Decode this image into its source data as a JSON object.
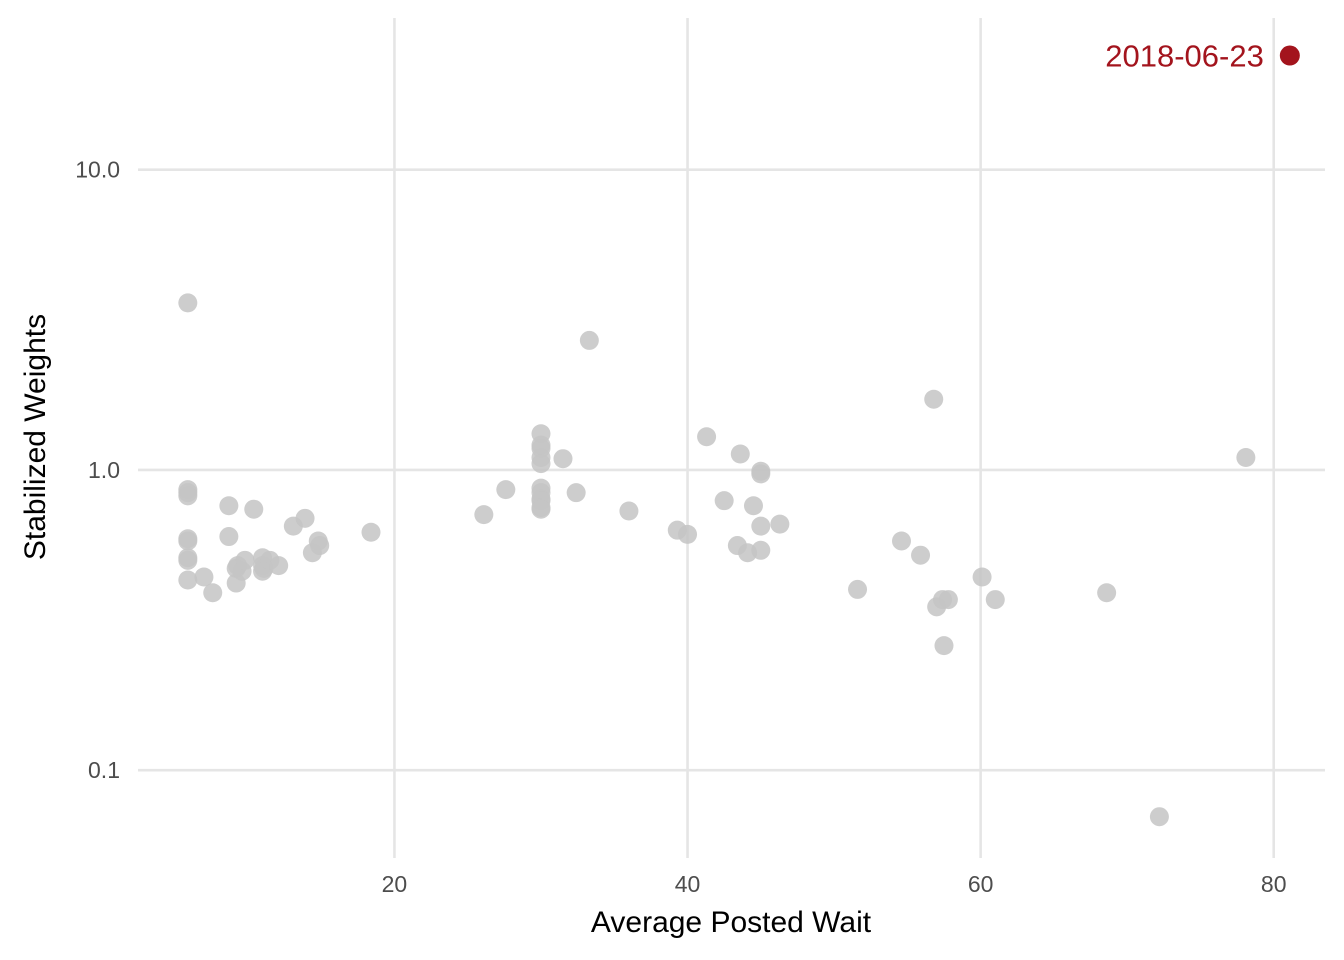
{
  "chart_data": {
    "type": "scatter",
    "title": "",
    "xlabel": "Average Posted Wait",
    "ylabel": "Stabilized Weights",
    "x_ticks": [
      "20",
      "40",
      "60",
      "80"
    ],
    "y_ticks": [
      "0.1",
      "1.0",
      "10.0"
    ],
    "y_scale": "log10",
    "xlim": [
      2.5,
      83.5
    ],
    "ylim": [
      0.051,
      32
    ],
    "grid": true,
    "colors": {
      "points": "#c4c4c4",
      "highlight": "#a3141d",
      "grid": "#e5e5e5"
    },
    "points": [
      [
        5.9,
        3.6
      ],
      [
        5.9,
        0.86
      ],
      [
        5.9,
        0.84
      ],
      [
        5.9,
        0.82
      ],
      [
        5.9,
        0.59
      ],
      [
        5.9,
        0.58
      ],
      [
        5.9,
        0.51
      ],
      [
        5.9,
        0.5
      ],
      [
        5.9,
        0.43
      ],
      [
        7.0,
        0.44
      ],
      [
        7.6,
        0.39
      ],
      [
        8.7,
        0.76
      ],
      [
        8.7,
        0.6
      ],
      [
        9.2,
        0.47
      ],
      [
        9.2,
        0.42
      ],
      [
        9.3,
        0.48
      ],
      [
        9.6,
        0.46
      ],
      [
        9.8,
        0.5
      ],
      [
        10.4,
        0.74
      ],
      [
        11.0,
        0.51
      ],
      [
        11.0,
        0.48
      ],
      [
        11.0,
        0.46
      ],
      [
        11.1,
        0.47
      ],
      [
        11.5,
        0.5
      ],
      [
        12.1,
        0.48
      ],
      [
        13.1,
        0.65
      ],
      [
        13.9,
        0.69
      ],
      [
        14.4,
        0.53
      ],
      [
        14.8,
        0.58
      ],
      [
        14.9,
        0.56
      ],
      [
        18.4,
        0.62
      ],
      [
        26.1,
        0.71
      ],
      [
        27.6,
        0.86
      ],
      [
        30.0,
        1.32
      ],
      [
        30.0,
        1.21
      ],
      [
        30.0,
        1.18
      ],
      [
        30.0,
        1.1
      ],
      [
        30.0,
        1.05
      ],
      [
        30.0,
        0.87
      ],
      [
        30.0,
        0.84
      ],
      [
        30.0,
        0.8
      ],
      [
        30.0,
        0.79
      ],
      [
        30.0,
        0.75
      ],
      [
        30.0,
        0.74
      ],
      [
        31.5,
        1.09
      ],
      [
        32.4,
        0.84
      ],
      [
        33.3,
        2.7
      ],
      [
        36.0,
        0.73
      ],
      [
        39.3,
        0.63
      ],
      [
        40.0,
        0.61
      ],
      [
        41.3,
        1.29
      ],
      [
        42.5,
        0.79
      ],
      [
        43.4,
        0.56
      ],
      [
        43.6,
        1.13
      ],
      [
        44.1,
        0.53
      ],
      [
        44.5,
        0.76
      ],
      [
        45.0,
        0.99
      ],
      [
        45.0,
        0.97
      ],
      [
        45.0,
        0.65
      ],
      [
        45.0,
        0.54
      ],
      [
        46.3,
        0.66
      ],
      [
        51.6,
        0.4
      ],
      [
        54.6,
        0.58
      ],
      [
        55.9,
        0.52
      ],
      [
        56.8,
        1.72
      ],
      [
        57.0,
        0.35
      ],
      [
        57.4,
        0.37
      ],
      [
        57.5,
        0.26
      ],
      [
        57.8,
        0.37
      ],
      [
        60.1,
        0.44
      ],
      [
        61.0,
        0.37
      ],
      [
        68.6,
        0.39
      ],
      [
        72.2,
        0.07
      ],
      [
        78.1,
        1.1
      ]
    ],
    "highlight": {
      "label": "2018-06-23",
      "x": 81.1,
      "y": 24
    }
  }
}
